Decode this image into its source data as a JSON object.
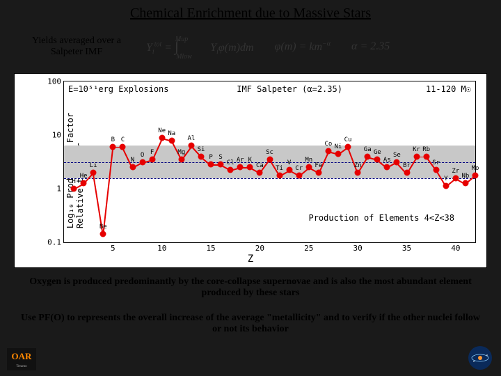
{
  "title": "Chemical Enrichment due to Massive Stars",
  "yields_line1": "Yields averaged over a",
  "yields_line2": "Salpeter IMF",
  "formula1": "Yᵢᵗᵒᵗ = ∫ Yᵢφ(m)dm (Mlow→Mup)",
  "formula2": "φ(m) = km⁻ᵅ",
  "formula3": "α = 2.35",
  "chart": {
    "type": "scatter-line",
    "ylabel_line1": "Log₁₀ Production Factor",
    "ylabel_line2": "Relative to Solar",
    "xlabel": "Z",
    "xlim": [
      0,
      42
    ],
    "ylim_log": [
      -1,
      2
    ],
    "yticks": [
      0.1,
      1,
      10,
      100
    ],
    "xticks": [
      5,
      10,
      15,
      20,
      25,
      30,
      35,
      40
    ],
    "grey_band_log": [
      0.2,
      0.8
    ],
    "dashed_log": 0.5,
    "annot_e51": "E=10⁵¹erg Explosions",
    "annot_imf": "IMF Salpeter (α=2.35)",
    "annot_mass": "11-120 M☉",
    "annot_prod": "Production of Elements 4<Z<38",
    "background_color": "#ffffff",
    "band_color": "#c8c8c8",
    "dashed_color": "#000080",
    "point_color": "#e60000",
    "line_color": "#e60000",
    "elements": [
      {
        "z": 1,
        "log": 0.0,
        "label": "H"
      },
      {
        "z": 2,
        "log": 0.1,
        "label": "He"
      },
      {
        "z": 3,
        "log": 0.3,
        "label": "Li"
      },
      {
        "z": 4,
        "log": -0.85,
        "label": "Be"
      },
      {
        "z": 5,
        "log": 0.78,
        "label": "B"
      },
      {
        "z": 6,
        "log": 0.78,
        "label": "C"
      },
      {
        "z": 7,
        "log": 0.4,
        "label": "N"
      },
      {
        "z": 8,
        "log": 0.5,
        "label": "O"
      },
      {
        "z": 9,
        "log": 0.55,
        "label": "F"
      },
      {
        "z": 10,
        "log": 0.95,
        "label": "Ne"
      },
      {
        "z": 11,
        "log": 0.9,
        "label": "Na"
      },
      {
        "z": 12,
        "log": 0.55,
        "label": "Mg"
      },
      {
        "z": 13,
        "log": 0.8,
        "label": "Al"
      },
      {
        "z": 14,
        "log": 0.6,
        "label": "Si"
      },
      {
        "z": 15,
        "log": 0.45,
        "label": "P"
      },
      {
        "z": 16,
        "log": 0.45,
        "label": "S"
      },
      {
        "z": 17,
        "log": 0.35,
        "label": "Cl"
      },
      {
        "z": 18,
        "log": 0.4,
        "label": "Ar"
      },
      {
        "z": 19,
        "log": 0.4,
        "label": "K"
      },
      {
        "z": 20,
        "log": 0.3,
        "label": "Ca"
      },
      {
        "z": 21,
        "log": 0.55,
        "label": "Sc"
      },
      {
        "z": 22,
        "log": 0.25,
        "label": "Ti"
      },
      {
        "z": 23,
        "log": 0.35,
        "label": "V"
      },
      {
        "z": 24,
        "log": 0.25,
        "label": "Cr"
      },
      {
        "z": 25,
        "log": 0.4,
        "label": "Mn"
      },
      {
        "z": 26,
        "log": 0.3,
        "label": "Fe"
      },
      {
        "z": 27,
        "log": 0.7,
        "label": "Co"
      },
      {
        "z": 28,
        "log": 0.65,
        "label": "Ni"
      },
      {
        "z": 29,
        "log": 0.78,
        "label": "Cu"
      },
      {
        "z": 30,
        "log": 0.3,
        "label": "Zn"
      },
      {
        "z": 31,
        "log": 0.6,
        "label": "Ga"
      },
      {
        "z": 32,
        "log": 0.55,
        "label": "Ge"
      },
      {
        "z": 33,
        "log": 0.4,
        "label": "As"
      },
      {
        "z": 34,
        "log": 0.5,
        "label": "Se"
      },
      {
        "z": 35,
        "log": 0.3,
        "label": "Br"
      },
      {
        "z": 36,
        "log": 0.6,
        "label": "Kr"
      },
      {
        "z": 37,
        "log": 0.6,
        "label": "Rb"
      },
      {
        "z": 38,
        "log": 0.35,
        "label": "Sr"
      },
      {
        "z": 39,
        "log": 0.05,
        "label": "Y"
      },
      {
        "z": 40,
        "log": 0.2,
        "label": "Zr"
      },
      {
        "z": 41,
        "log": 0.1,
        "label": "Nb"
      },
      {
        "z": 42,
        "log": 0.25,
        "label": "Mo"
      }
    ]
  },
  "body1": "Oxygen is produced predominantly by the core-collapse supernovae and is also the most abundant element produced by these stars",
  "body2": "Use PF(O) to represents the overall increase of the average \"metallicity\" and to verify if the other nuclei follow or not its behavior",
  "colors": {
    "slide_bg": "#1a1a1a",
    "text": "#000000"
  }
}
